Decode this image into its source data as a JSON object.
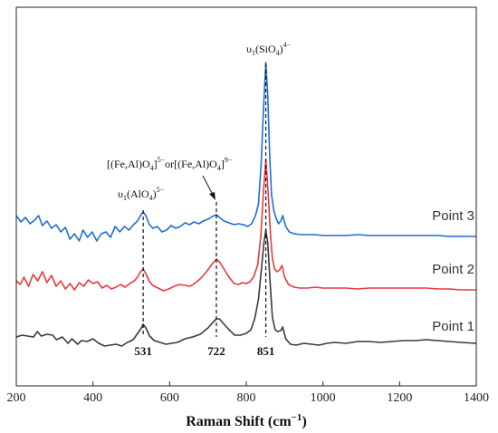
{
  "chart_data": {
    "type": "line",
    "xlabel": "Raman Shift (cm",
    "xlabel_sup": "−1",
    "xlabel_close": ")",
    "xlim": [
      200,
      1400
    ],
    "xticks": [
      200,
      400,
      600,
      800,
      1000,
      1200,
      1400
    ],
    "y_axis_visible": false,
    "grid": false,
    "series": [
      {
        "name": "Point 1",
        "color": "#3a3a3a",
        "points": [
          [
            200,
            372
          ],
          [
            215,
            370
          ],
          [
            230,
            371
          ],
          [
            245,
            372
          ],
          [
            255,
            366
          ],
          [
            265,
            371
          ],
          [
            280,
            369
          ],
          [
            295,
            370
          ],
          [
            305,
            375
          ],
          [
            320,
            372
          ],
          [
            335,
            379
          ],
          [
            345,
            374
          ],
          [
            360,
            380
          ],
          [
            370,
            376
          ],
          [
            385,
            377
          ],
          [
            400,
            374
          ],
          [
            415,
            379
          ],
          [
            430,
            382
          ],
          [
            445,
            381
          ],
          [
            460,
            380
          ],
          [
            475,
            382
          ],
          [
            490,
            378
          ],
          [
            505,
            375
          ],
          [
            515,
            369
          ],
          [
            525,
            363
          ],
          [
            531,
            358
          ],
          [
            538,
            362
          ],
          [
            548,
            371
          ],
          [
            560,
            376
          ],
          [
            575,
            378
          ],
          [
            590,
            380
          ],
          [
            605,
            379
          ],
          [
            620,
            378
          ],
          [
            640,
            374
          ],
          [
            660,
            372
          ],
          [
            680,
            369
          ],
          [
            700,
            362
          ],
          [
            715,
            355
          ],
          [
            722,
            352
          ],
          [
            730,
            352
          ],
          [
            740,
            357
          ],
          [
            755,
            364
          ],
          [
            770,
            370
          ],
          [
            785,
            370
          ],
          [
            800,
            368
          ],
          [
            812,
            364
          ],
          [
            822,
            352
          ],
          [
            832,
            330
          ],
          [
            840,
            295
          ],
          [
            846,
            268
          ],
          [
            851,
            254
          ],
          [
            856,
            268
          ],
          [
            862,
            310
          ],
          [
            868,
            350
          ],
          [
            875,
            364
          ],
          [
            882,
            366
          ],
          [
            890,
            365
          ],
          [
            895,
            361
          ],
          [
            903,
            374
          ],
          [
            915,
            380
          ],
          [
            930,
            381
          ],
          [
            950,
            379
          ],
          [
            970,
            380
          ],
          [
            990,
            381
          ],
          [
            1010,
            379
          ],
          [
            1030,
            378
          ],
          [
            1060,
            379
          ],
          [
            1090,
            377
          ],
          [
            1120,
            377
          ],
          [
            1150,
            378
          ],
          [
            1180,
            377
          ],
          [
            1210,
            376
          ],
          [
            1240,
            376
          ],
          [
            1270,
            375
          ],
          [
            1300,
            376
          ],
          [
            1330,
            377
          ],
          [
            1360,
            378
          ],
          [
            1400,
            379
          ]
        ]
      },
      {
        "name": "Point 2",
        "color": "#e8393b",
        "points": [
          [
            200,
            310
          ],
          [
            210,
            314
          ],
          [
            220,
            306
          ],
          [
            232,
            316
          ],
          [
            244,
            303
          ],
          [
            256,
            310
          ],
          [
            268,
            300
          ],
          [
            280,
            312
          ],
          [
            292,
            304
          ],
          [
            304,
            316
          ],
          [
            316,
            310
          ],
          [
            328,
            319
          ],
          [
            340,
            313
          ],
          [
            352,
            320
          ],
          [
            364,
            312
          ],
          [
            376,
            316
          ],
          [
            388,
            309
          ],
          [
            400,
            313
          ],
          [
            412,
            311
          ],
          [
            424,
            318
          ],
          [
            436,
            315
          ],
          [
            448,
            319
          ],
          [
            460,
            317
          ],
          [
            472,
            314
          ],
          [
            484,
            317
          ],
          [
            496,
            313
          ],
          [
            508,
            310
          ],
          [
            516,
            306
          ],
          [
            524,
            300
          ],
          [
            531,
            297
          ],
          [
            538,
            302
          ],
          [
            546,
            310
          ],
          [
            556,
            315
          ],
          [
            570,
            318
          ],
          [
            584,
            321
          ],
          [
            598,
            319
          ],
          [
            612,
            316
          ],
          [
            626,
            314
          ],
          [
            640,
            315
          ],
          [
            654,
            316
          ],
          [
            668,
            312
          ],
          [
            682,
            307
          ],
          [
            696,
            300
          ],
          [
            708,
            293
          ],
          [
            718,
            288
          ],
          [
            722,
            286
          ],
          [
            730,
            289
          ],
          [
            742,
            297
          ],
          [
            755,
            306
          ],
          [
            768,
            313
          ],
          [
            780,
            314
          ],
          [
            790,
            312
          ],
          [
            800,
            313
          ],
          [
            810,
            311
          ],
          [
            820,
            305
          ],
          [
            830,
            292
          ],
          [
            838,
            260
          ],
          [
            845,
            210
          ],
          [
            851,
            176
          ],
          [
            857,
            212
          ],
          [
            863,
            258
          ],
          [
            868,
            285
          ],
          [
            874,
            297
          ],
          [
            880,
            300
          ],
          [
            887,
            298
          ],
          [
            893,
            293
          ],
          [
            900,
            306
          ],
          [
            910,
            314
          ],
          [
            925,
            317
          ],
          [
            940,
            318
          ],
          [
            960,
            318
          ],
          [
            980,
            317
          ],
          [
            1000,
            318
          ],
          [
            1030,
            318
          ],
          [
            1060,
            318
          ],
          [
            1090,
            319
          ],
          [
            1120,
            318
          ],
          [
            1150,
            318
          ],
          [
            1180,
            318
          ],
          [
            1210,
            318
          ],
          [
            1240,
            318
          ],
          [
            1270,
            318
          ],
          [
            1300,
            319
          ],
          [
            1330,
            319
          ],
          [
            1360,
            320
          ],
          [
            1400,
            320
          ]
        ]
      },
      {
        "name": "Point 3",
        "color": "#1d6fd1",
        "points": [
          [
            200,
            238
          ],
          [
            212,
            245
          ],
          [
            224,
            240
          ],
          [
            236,
            247
          ],
          [
            248,
            243
          ],
          [
            258,
            238
          ],
          [
            268,
            249
          ],
          [
            280,
            244
          ],
          [
            292,
            252
          ],
          [
            304,
            248
          ],
          [
            316,
            256
          ],
          [
            328,
            251
          ],
          [
            340,
            264
          ],
          [
            352,
            258
          ],
          [
            364,
            266
          ],
          [
            374,
            254
          ],
          [
            386,
            262
          ],
          [
            398,
            256
          ],
          [
            410,
            266
          ],
          [
            422,
            258
          ],
          [
            434,
            256
          ],
          [
            446,
            262
          ],
          [
            458,
            250
          ],
          [
            470,
            256
          ],
          [
            482,
            250
          ],
          [
            494,
            254
          ],
          [
            506,
            248
          ],
          [
            516,
            244
          ],
          [
            524,
            238
          ],
          [
            531,
            234
          ],
          [
            538,
            238
          ],
          [
            546,
            247
          ],
          [
            556,
            252
          ],
          [
            568,
            250
          ],
          [
            580,
            256
          ],
          [
            592,
            254
          ],
          [
            604,
            249
          ],
          [
            616,
            252
          ],
          [
            628,
            250
          ],
          [
            640,
            246
          ],
          [
            652,
            248
          ],
          [
            664,
            245
          ],
          [
            676,
            247
          ],
          [
            688,
            244
          ],
          [
            700,
            242
          ],
          [
            712,
            239
          ],
          [
            722,
            237
          ],
          [
            730,
            240
          ],
          [
            742,
            244
          ],
          [
            755,
            246
          ],
          [
            768,
            248
          ],
          [
            780,
            247
          ],
          [
            792,
            248
          ],
          [
            804,
            250
          ],
          [
            814,
            247
          ],
          [
            824,
            238
          ],
          [
            832,
            225
          ],
          [
            839,
            180
          ],
          [
            845,
            118
          ],
          [
            851,
            69
          ],
          [
            856,
            105
          ],
          [
            861,
            170
          ],
          [
            866,
            215
          ],
          [
            872,
            233
          ],
          [
            878,
            241
          ],
          [
            884,
            247
          ],
          [
            890,
            244
          ],
          [
            895,
            238
          ],
          [
            903,
            250
          ],
          [
            912,
            256
          ],
          [
            925,
            258
          ],
          [
            940,
            259
          ],
          [
            960,
            259
          ],
          [
            980,
            259
          ],
          [
            1000,
            260
          ],
          [
            1030,
            260
          ],
          [
            1060,
            260
          ],
          [
            1090,
            259
          ],
          [
            1120,
            260
          ],
          [
            1150,
            260
          ],
          [
            1180,
            260
          ],
          [
            1210,
            260
          ],
          [
            1240,
            260
          ],
          [
            1270,
            260
          ],
          [
            1300,
            260
          ],
          [
            1330,
            261
          ],
          [
            1360,
            261
          ],
          [
            1400,
            261
          ]
        ]
      }
    ],
    "series_labels": [
      {
        "text": "Point 3",
        "anchor_x": 1340,
        "anchor_y": 243
      },
      {
        "text": "Point 2",
        "anchor_x": 1340,
        "anchor_y": 302
      },
      {
        "text": "Point 1",
        "anchor_x": 1340,
        "anchor_y": 365
      }
    ],
    "peaks": [
      {
        "x": 531,
        "label": "531"
      },
      {
        "x": 722,
        "label": "722"
      },
      {
        "x": 851,
        "label": "851"
      }
    ],
    "annotations": {
      "alo4": {
        "base": "υ",
        "sub": "1",
        "mid": "(AlO",
        "sub2": "4",
        "close": ")",
        "sup": "5−"
      },
      "sio4": {
        "base": "υ",
        "sub": "1",
        "mid": "(SiO",
        "sub2": "4",
        "close": ")",
        "sup": "4−"
      },
      "feal": {
        "p1": "[(Fe,Al)O",
        "s1": "4",
        "c1": "]",
        "sup1": "5−",
        "or": "or",
        "p2": "[(Fe,Al)O",
        "s2": "4",
        "c2": "]",
        "sup2": "9−"
      }
    }
  }
}
